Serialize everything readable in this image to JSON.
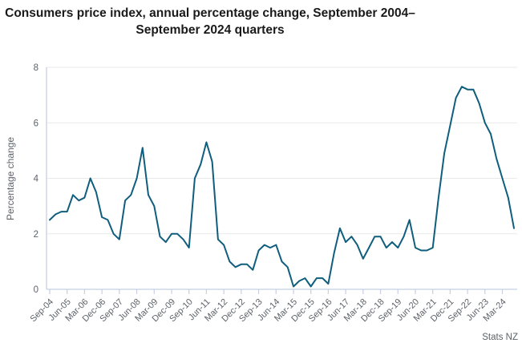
{
  "title": {
    "text": "Consumers price index, annual percentage change, September 2004–September 2024 quarters"
  },
  "source": {
    "label": "Stats NZ"
  },
  "chart_data": {
    "type": "line",
    "title": "Consumers price index, annual percentage change, September 2004–September 2024 quarters",
    "xlabel": "",
    "ylabel": "Percentage change",
    "ylim": [
      0,
      8
    ],
    "yticks": [
      0,
      2,
      4,
      6,
      8
    ],
    "grid": true,
    "legend": false,
    "x_tick_every": 3,
    "categories": [
      "Sep-04",
      "Dec-04",
      "Mar-05",
      "Jun-05",
      "Sep-05",
      "Dec-05",
      "Mar-06",
      "Jun-06",
      "Sep-06",
      "Dec-06",
      "Mar-07",
      "Jun-07",
      "Sep-07",
      "Dec-07",
      "Mar-08",
      "Jun-08",
      "Sep-08",
      "Dec-08",
      "Mar-09",
      "Jun-09",
      "Sep-09",
      "Dec-09",
      "Mar-10",
      "Jun-10",
      "Sep-10",
      "Dec-10",
      "Mar-11",
      "Jun-11",
      "Sep-11",
      "Dec-11",
      "Mar-12",
      "Jun-12",
      "Sep-12",
      "Dec-12",
      "Mar-13",
      "Jun-13",
      "Sep-13",
      "Dec-13",
      "Mar-14",
      "Jun-14",
      "Sep-14",
      "Dec-14",
      "Mar-15",
      "Jun-15",
      "Sep-15",
      "Dec-15",
      "Mar-16",
      "Jun-16",
      "Sep-16",
      "Dec-16",
      "Mar-17",
      "Jun-17",
      "Sep-17",
      "Dec-17",
      "Mar-18",
      "Jun-18",
      "Sep-18",
      "Dec-18",
      "Mar-19",
      "Jun-19",
      "Sep-19",
      "Dec-19",
      "Mar-20",
      "Jun-20",
      "Sep-20",
      "Dec-20",
      "Mar-21",
      "Jun-21",
      "Sep-21",
      "Dec-21",
      "Mar-22",
      "Jun-22",
      "Sep-22",
      "Dec-22",
      "Mar-23",
      "Jun-23",
      "Sep-23",
      "Dec-23",
      "Mar-24",
      "Jun-24",
      "Sep-24"
    ],
    "series": [
      {
        "name": "CPI annual percentage change",
        "values": [
          2.5,
          2.7,
          2.8,
          2.8,
          3.4,
          3.2,
          3.3,
          4.0,
          3.5,
          2.6,
          2.5,
          2.0,
          1.8,
          3.2,
          3.4,
          4.0,
          5.1,
          3.4,
          3.0,
          1.9,
          1.7,
          2.0,
          2.0,
          1.8,
          1.5,
          4.0,
          4.5,
          5.3,
          4.6,
          1.8,
          1.6,
          1.0,
          0.8,
          0.9,
          0.9,
          0.7,
          1.4,
          1.6,
          1.5,
          1.6,
          1.0,
          0.8,
          0.1,
          0.3,
          0.4,
          0.1,
          0.4,
          0.4,
          0.2,
          1.3,
          2.2,
          1.7,
          1.9,
          1.6,
          1.1,
          1.5,
          1.9,
          1.9,
          1.5,
          1.7,
          1.5,
          1.9,
          2.5,
          1.5,
          1.4,
          1.4,
          1.5,
          3.3,
          4.9,
          5.9,
          6.9,
          7.3,
          7.2,
          7.2,
          6.7,
          6.0,
          5.6,
          4.7,
          4.0,
          3.3,
          2.2
        ]
      }
    ],
    "colors": {
      "line": "#0f5e7e",
      "axis": "#c8cfe3",
      "grid": "#e8e9ec",
      "tick_label": "#5d6269",
      "axis_title": "#5d6269",
      "source": "#5d6269",
      "title": "#1a1a1a"
    }
  }
}
